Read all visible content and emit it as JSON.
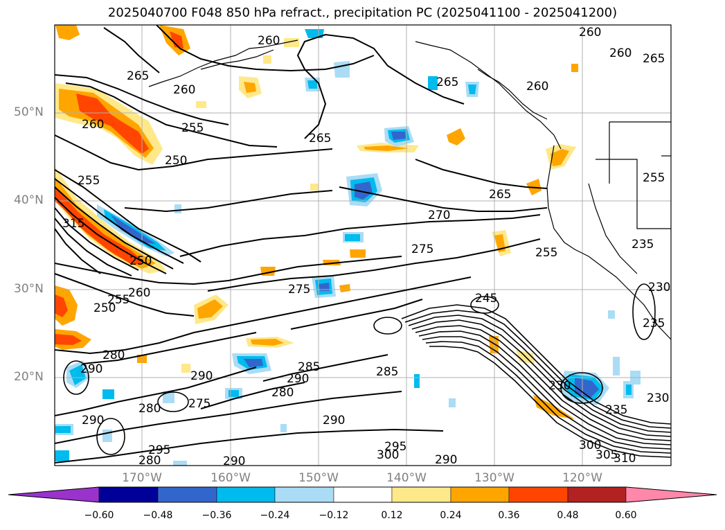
{
  "title": "2025040700 F048 850 hPa refract., precipitation PC (2025041100 - 2025041200)",
  "lat_labels": [
    "50°N",
    "40°N",
    "30°N",
    "20°N"
  ],
  "lon_labels": [
    "170°W",
    "160°W",
    "150°W",
    "140°W",
    "130°W",
    "120°W"
  ],
  "colorbar": {
    "ticks": [
      "−0.60",
      "−0.48",
      "−0.36",
      "−0.24",
      "−0.12",
      "0.12",
      "0.24",
      "0.36",
      "0.48",
      "0.60"
    ],
    "colors": [
      "#9933cc",
      "#000099",
      "#3366cc",
      "#00bbee",
      "#aadcf5",
      "#ffffff",
      "#ffe88a",
      "#ffa500",
      "#ff4500",
      "#b22222",
      "#ff88aa"
    ]
  },
  "contour_labels": {
    "lbl_260a": "260",
    "lbl_260b": "260",
    "lbl_260c": "260",
    "lbl_260d": "260",
    "lbl_260e": "260",
    "lbl_260f": "260",
    "lbl_260g": "260",
    "lbl_265a": "265",
    "lbl_265b": "265",
    "lbl_265c": "265",
    "lbl_265d": "265",
    "lbl_265e": "265",
    "lbl_255a": "255",
    "lbl_255b": "255",
    "lbl_255c": "255",
    "lbl_255d": "255",
    "lbl_255e": "255",
    "lbl_250a": "250",
    "lbl_250b": "250",
    "lbl_250c": "250",
    "lbl_270": "270",
    "lbl_275a": "275",
    "lbl_275b": "275",
    "lbl_275c": "275",
    "lbl_280a": "280",
    "lbl_280b": "280",
    "lbl_280c": "280",
    "lbl_280d": "280",
    "lbl_285a": "285",
    "lbl_285b": "285",
    "lbl_290a": "290",
    "lbl_290b": "290",
    "lbl_290c": "290",
    "lbl_290d": "290",
    "lbl_290e": "290",
    "lbl_290f": "290",
    "lbl_290g": "290",
    "lbl_295a": "295",
    "lbl_295b": "295",
    "lbl_300a": "300",
    "lbl_300b": "300",
    "lbl_305": "305",
    "lbl_310": "310",
    "lbl_230a": "230",
    "lbl_230b": "230",
    "lbl_230c": "230",
    "lbl_235a": "235",
    "lbl_235b": "235",
    "lbl_235c": "235",
    "lbl_245": "245",
    "lbl_315": "315"
  }
}
